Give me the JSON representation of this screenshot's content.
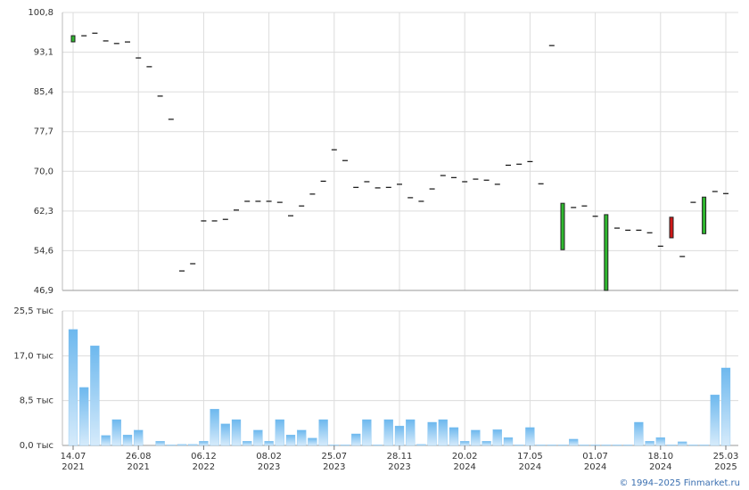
{
  "chart_data": [
    {
      "type": "candlestick",
      "color_up": "#2fb82f",
      "color_down": "#d01818",
      "color_flat": "#111111",
      "open": [
        95.1,
        96.3,
        96.8,
        95.3,
        94.8,
        95.1,
        92.0,
        90.3,
        84.6,
        80.1,
        50.7,
        52.1,
        60.4,
        60.4,
        60.7,
        62.5,
        64.2,
        64.2,
        64.2,
        64.0,
        61.4,
        63.3,
        65.6,
        68.1,
        74.2,
        72.1,
        66.9,
        68.0,
        66.8,
        66.9,
        67.5,
        64.9,
        64.2,
        66.6,
        69.2,
        68.8,
        68.0,
        68.5,
        68.3,
        67.5,
        71.2,
        71.4,
        71.9,
        67.6,
        94.4,
        54.8,
        63.0,
        63.3,
        61.3,
        46.9,
        59.0,
        58.6,
        58.6,
        58.1,
        55.5,
        61.1,
        53.5,
        64.0,
        57.9,
        66.1,
        65.7
      ],
      "close": [
        96.3,
        96.3,
        96.8,
        95.3,
        94.8,
        95.1,
        92.0,
        90.3,
        84.6,
        80.1,
        50.7,
        52.1,
        60.4,
        60.4,
        60.7,
        62.5,
        64.2,
        64.2,
        64.2,
        64.0,
        61.4,
        63.3,
        65.6,
        68.1,
        74.2,
        72.1,
        66.9,
        68.0,
        66.8,
        66.9,
        67.5,
        64.9,
        64.2,
        66.6,
        69.2,
        68.8,
        68.0,
        68.5,
        68.3,
        67.5,
        71.2,
        71.4,
        71.9,
        67.6,
        94.4,
        63.8,
        63.0,
        63.3,
        61.3,
        61.6,
        59.0,
        58.6,
        58.6,
        58.1,
        55.5,
        57.1,
        53.5,
        64.0,
        65.0,
        66.1,
        65.7
      ],
      "ylim": [
        46.9,
        100.8
      ],
      "yticks": [
        {
          "value": 46.9,
          "label": "46,9"
        },
        {
          "value": 54.6,
          "label": "54,6"
        },
        {
          "value": 62.3,
          "label": "62,3"
        },
        {
          "value": 70.0,
          "label": "70,0"
        },
        {
          "value": 77.7,
          "label": "77,7"
        },
        {
          "value": 85.4,
          "label": "85,4"
        },
        {
          "value": 93.1,
          "label": "93,1"
        },
        {
          "value": 100.8,
          "label": "100,8"
        }
      ],
      "grid": true
    },
    {
      "type": "bar",
      "color": "#7cc0f0",
      "categories": [
        "14.07 2021",
        null,
        null,
        null,
        null,
        null,
        "26.08 2021",
        null,
        null,
        null,
        null,
        null,
        "06.12 2022",
        null,
        null,
        null,
        null,
        null,
        "08.02 2023",
        null,
        null,
        null,
        null,
        null,
        "25.07 2023",
        null,
        null,
        null,
        null,
        null,
        "28.11 2023",
        null,
        null,
        null,
        null,
        null,
        "20.02 2024",
        null,
        null,
        null,
        null,
        null,
        "17.05 2024",
        null,
        null,
        null,
        null,
        null,
        "01.07 2024",
        null,
        null,
        null,
        null,
        null,
        "18.10 2024",
        null,
        null,
        null,
        null,
        null,
        "25.03 2025"
      ],
      "values": [
        22.0,
        11.0,
        18.9,
        1.9,
        4.9,
        2.0,
        2.9,
        0,
        0.8,
        0.1,
        0.2,
        0.2,
        0.8,
        6.9,
        4.1,
        4.9,
        0.8,
        2.9,
        0.8,
        4.9,
        2.0,
        2.9,
        1.4,
        4.9,
        0.1,
        0.1,
        2.2,
        4.9,
        0.1,
        4.9,
        3.7,
        4.9,
        0.2,
        4.4,
        4.9,
        3.4,
        0.8,
        2.9,
        0.8,
        3.0,
        1.5,
        0.1,
        3.4,
        0.1,
        0.1,
        0.1,
        1.2,
        0.1,
        0.1,
        0.1,
        0.1,
        0.1,
        4.4,
        0.8,
        1.5,
        0.1,
        0.7,
        0.1,
        0.1,
        9.6,
        14.7
      ],
      "ylim": [
        0,
        25.5
      ],
      "yticks": [
        {
          "value": 0,
          "label": "0,0 тыс"
        },
        {
          "value": 8.5,
          "label": "8,5 тыс"
        },
        {
          "value": 17.0,
          "label": "17,0 тыс"
        },
        {
          "value": 25.5,
          "label": "25,5 тыс"
        }
      ],
      "grid": true
    }
  ],
  "footer": {
    "copyright": "© 1994–2025 Finmarket.ru"
  }
}
